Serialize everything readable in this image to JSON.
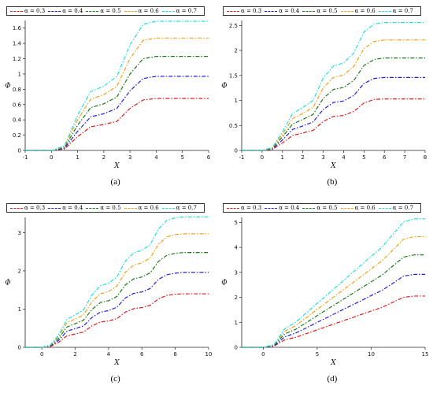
{
  "series_colors": [
    "#e31a1c",
    "#1f1fe0",
    "#1a7a1a",
    "#f5a01a",
    "#1fe0e0"
  ],
  "chart_data": [
    {
      "type": "line",
      "caption": "(a)",
      "xlabel": "X",
      "ylabel": "Φ",
      "xlim": [
        -1,
        6
      ],
      "ylim": [
        0,
        1.7
      ],
      "xticks": [
        -1,
        0,
        1,
        2,
        3,
        4,
        5,
        6
      ],
      "yticks": [
        0,
        0.2,
        0.4,
        0.6,
        0.8,
        1,
        1.2,
        1.4,
        1.6
      ],
      "x": [
        -1,
        0,
        0.5,
        1,
        1.5,
        2,
        2.5,
        3,
        3.5,
        4,
        4.5,
        5,
        6
      ],
      "series": [
        {
          "name": "α = 0.3",
          "values": [
            0,
            0,
            0.02,
            0.18,
            0.31,
            0.34,
            0.38,
            0.55,
            0.66,
            0.68,
            0.68,
            0.68,
            0.68
          ]
        },
        {
          "name": "α = 0.4",
          "values": [
            0,
            0,
            0.03,
            0.25,
            0.44,
            0.48,
            0.55,
            0.78,
            0.94,
            0.97,
            0.97,
            0.97,
            0.97
          ]
        },
        {
          "name": "α = 0.5",
          "values": [
            0,
            0,
            0.04,
            0.33,
            0.56,
            0.61,
            0.7,
            1.0,
            1.2,
            1.23,
            1.23,
            1.23,
            1.23
          ]
        },
        {
          "name": "α = 0.6",
          "values": [
            0,
            0,
            0.05,
            0.4,
            0.67,
            0.73,
            0.84,
            1.2,
            1.44,
            1.47,
            1.47,
            1.47,
            1.47
          ]
        },
        {
          "name": "α = 0.7",
          "values": [
            0,
            0,
            0.06,
            0.46,
            0.77,
            0.84,
            0.97,
            1.38,
            1.65,
            1.69,
            1.69,
            1.69,
            1.69
          ]
        }
      ]
    },
    {
      "type": "line",
      "caption": "(b)",
      "xlabel": "X",
      "ylabel": "Φ",
      "xlim": [
        -1,
        8
      ],
      "ylim": [
        0,
        2.6
      ],
      "xticks": [
        -1,
        0,
        1,
        2,
        3,
        4,
        5,
        6,
        7,
        8
      ],
      "yticks": [
        0,
        0.5,
        1,
        1.5,
        2,
        2.5
      ],
      "x": [
        -1,
        0,
        0.5,
        1,
        1.5,
        2,
        2.5,
        3,
        3.5,
        4,
        4.5,
        5,
        5.5,
        6,
        7,
        8
      ],
      "series": [
        {
          "name": "α = 0.3",
          "values": [
            0,
            0,
            0.02,
            0.15,
            0.3,
            0.35,
            0.4,
            0.58,
            0.68,
            0.7,
            0.78,
            0.95,
            1.02,
            1.03,
            1.03,
            1.03
          ]
        },
        {
          "name": "α = 0.4",
          "values": [
            0,
            0,
            0.03,
            0.21,
            0.42,
            0.49,
            0.57,
            0.82,
            0.96,
            0.99,
            1.1,
            1.34,
            1.44,
            1.46,
            1.46,
            1.46
          ]
        },
        {
          "name": "α = 0.5",
          "values": [
            0,
            0,
            0.04,
            0.27,
            0.53,
            0.62,
            0.72,
            1.04,
            1.22,
            1.26,
            1.4,
            1.7,
            1.82,
            1.85,
            1.85,
            1.85
          ]
        },
        {
          "name": "α = 0.6",
          "values": [
            0,
            0,
            0.05,
            0.32,
            0.64,
            0.74,
            0.86,
            1.25,
            1.46,
            1.51,
            1.68,
            2.04,
            2.18,
            2.21,
            2.21,
            2.21
          ]
        },
        {
          "name": "α = 0.7",
          "values": [
            0,
            0,
            0.06,
            0.37,
            0.74,
            0.86,
            1.0,
            1.45,
            1.69,
            1.75,
            1.95,
            2.37,
            2.53,
            2.56,
            2.56,
            2.56
          ]
        }
      ]
    },
    {
      "type": "line",
      "caption": "(c)",
      "xlabel": "X",
      "ylabel": "Φ",
      "xlim": [
        -1,
        10
      ],
      "ylim": [
        0,
        3.4
      ],
      "xticks": [
        0,
        2,
        4,
        6,
        8,
        10
      ],
      "yticks": [
        0,
        1,
        2,
        3
      ],
      "x": [
        -1,
        0,
        0.5,
        1,
        1.5,
        2,
        2.5,
        3,
        3.5,
        4,
        4.5,
        5,
        5.5,
        6,
        6.5,
        7,
        7.5,
        8,
        8.5,
        9,
        10
      ],
      "series": [
        {
          "name": "α = 0.3",
          "values": [
            0,
            0,
            0.02,
            0.13,
            0.3,
            0.35,
            0.4,
            0.56,
            0.66,
            0.69,
            0.75,
            0.92,
            1.01,
            1.04,
            1.1,
            1.27,
            1.36,
            1.39,
            1.4,
            1.4,
            1.4
          ]
        },
        {
          "name": "α = 0.4",
          "values": [
            0,
            0,
            0.03,
            0.18,
            0.42,
            0.49,
            0.56,
            0.78,
            0.92,
            0.96,
            1.05,
            1.29,
            1.41,
            1.45,
            1.54,
            1.78,
            1.9,
            1.94,
            1.96,
            1.96,
            1.96
          ]
        },
        {
          "name": "α = 0.5",
          "values": [
            0,
            0,
            0.04,
            0.23,
            0.53,
            0.62,
            0.71,
            0.99,
            1.17,
            1.22,
            1.33,
            1.63,
            1.79,
            1.84,
            1.95,
            2.25,
            2.41,
            2.46,
            2.48,
            2.48,
            2.48
          ]
        },
        {
          "name": "α = 0.6",
          "values": [
            0,
            0,
            0.05,
            0.28,
            0.64,
            0.74,
            0.85,
            1.19,
            1.4,
            1.46,
            1.6,
            1.96,
            2.15,
            2.21,
            2.34,
            2.7,
            2.89,
            2.95,
            2.97,
            2.97,
            2.97
          ]
        },
        {
          "name": "α = 0.7",
          "values": [
            0,
            0,
            0.06,
            0.32,
            0.73,
            0.85,
            0.98,
            1.37,
            1.61,
            1.68,
            1.84,
            2.25,
            2.47,
            2.54,
            2.69,
            3.1,
            3.32,
            3.39,
            3.41,
            3.41,
            3.41
          ]
        }
      ]
    },
    {
      "type": "line",
      "caption": "(d)",
      "xlabel": "X",
      "ylabel": "Φ",
      "xlim": [
        -2,
        15
      ],
      "ylim": [
        0,
        5.2
      ],
      "xticks": [
        0,
        5,
        10,
        15
      ],
      "yticks": [
        0,
        1,
        2,
        3,
        4,
        5
      ],
      "x": [
        -2,
        0,
        1,
        2,
        3,
        4,
        5,
        6,
        7,
        8,
        9,
        10,
        11,
        12,
        13,
        14,
        15
      ],
      "series": [
        {
          "name": "α = 0.3",
          "values": [
            0,
            0,
            0.05,
            0.3,
            0.4,
            0.55,
            0.7,
            0.85,
            1.0,
            1.15,
            1.3,
            1.45,
            1.6,
            1.8,
            2.0,
            2.05,
            2.05
          ]
        },
        {
          "name": "α = 0.4",
          "values": [
            0,
            0,
            0.06,
            0.42,
            0.57,
            0.78,
            1.0,
            1.21,
            1.43,
            1.64,
            1.85,
            2.07,
            2.28,
            2.56,
            2.85,
            2.92,
            2.92
          ]
        },
        {
          "name": "α = 0.5",
          "values": [
            0,
            0,
            0.08,
            0.54,
            0.72,
            0.99,
            1.27,
            1.54,
            1.81,
            2.08,
            2.35,
            2.62,
            2.89,
            3.25,
            3.61,
            3.7,
            3.7
          ]
        },
        {
          "name": "α = 0.6",
          "values": [
            0,
            0,
            0.1,
            0.65,
            0.86,
            1.19,
            1.52,
            1.84,
            2.17,
            2.49,
            2.81,
            3.14,
            3.46,
            3.89,
            4.33,
            4.43,
            4.43
          ]
        },
        {
          "name": "α = 0.7",
          "values": [
            0,
            0,
            0.11,
            0.75,
            1.0,
            1.38,
            1.76,
            2.13,
            2.51,
            2.89,
            3.26,
            3.64,
            4.01,
            4.51,
            5.02,
            5.14,
            5.14
          ]
        }
      ]
    }
  ]
}
